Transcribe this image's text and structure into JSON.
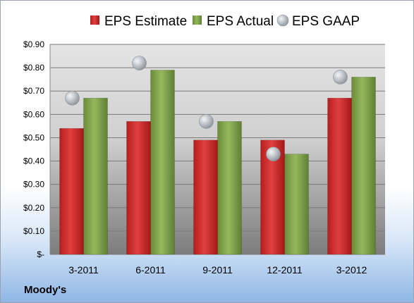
{
  "chart_data": {
    "type": "bar",
    "title": "",
    "xlabel": "",
    "ylabel": "",
    "categories": [
      "3-2011",
      "6-2011",
      "9-2011",
      "12-2011",
      "3-2012"
    ],
    "series": [
      {
        "name": "EPS Estimate",
        "kind": "bar",
        "color": "#d42a2a",
        "values": [
          0.54,
          0.57,
          0.49,
          0.49,
          0.67
        ]
      },
      {
        "name": "EPS Actual",
        "kind": "bar",
        "color": "#7ea04a",
        "values": [
          0.67,
          0.79,
          0.57,
          0.43,
          0.76
        ]
      },
      {
        "name": "EPS GAAP",
        "kind": "marker",
        "color": "#b0b4ba",
        "values": [
          0.67,
          0.82,
          0.57,
          0.43,
          0.76
        ]
      }
    ],
    "ylim": [
      0,
      0.9
    ],
    "yticks": [
      0,
      0.1,
      0.2,
      0.3,
      0.4,
      0.5,
      0.6,
      0.7,
      0.8,
      0.9
    ],
    "ytick_labels": [
      "$-",
      "$0.10",
      "$0.20",
      "$0.30",
      "$0.40",
      "$0.50",
      "$0.60",
      "$0.70",
      "$0.80",
      "$0.90"
    ],
    "grid": true,
    "legend_position": "top"
  },
  "source_label": "Moody's"
}
